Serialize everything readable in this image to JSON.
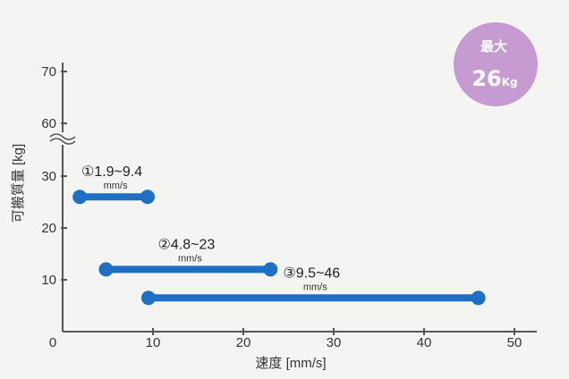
{
  "chart_data": {
    "type": "range-bar",
    "xlabel": "速度 [mm/s]",
    "ylabel": "可搬質量 [kg]",
    "xlim": [
      0,
      50
    ],
    "ylim": [
      0,
      70
    ],
    "x_ticks": [
      0,
      10,
      20,
      30,
      40,
      50
    ],
    "y_ticks": [
      10,
      20,
      30,
      60,
      70
    ],
    "y_axis_break": true,
    "grid": false,
    "series": [
      {
        "marker": "①",
        "label": "1.9~9.4",
        "unit": "mm/s",
        "x": [
          1.9,
          9.4
        ],
        "y": 26
      },
      {
        "marker": "②",
        "label": "4.8~23",
        "unit": "mm/s",
        "x": [
          4.8,
          23
        ],
        "y": 12
      },
      {
        "marker": "③",
        "label": "9.5~46",
        "unit": "mm/s",
        "x": [
          9.5,
          46
        ],
        "y": 6.5
      }
    ],
    "badge": {
      "line1": "最大",
      "value": "26",
      "unit": "Kg"
    },
    "colors": {
      "bar": "#1f6fc4",
      "badge": "#c59bd1",
      "axis": "#555555"
    }
  }
}
